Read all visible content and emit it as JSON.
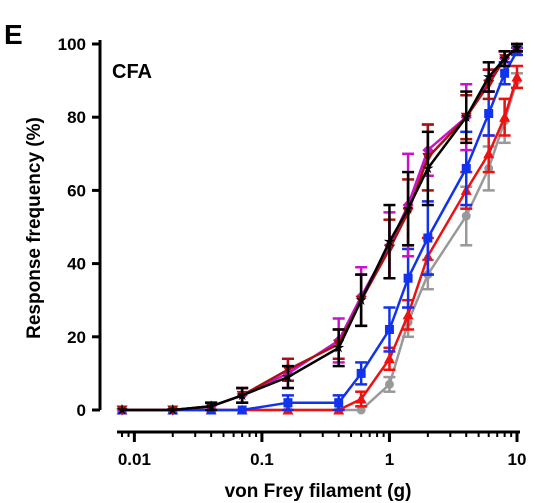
{
  "panel_label": "E",
  "chart_data": {
    "type": "line",
    "title": "",
    "annotation": "CFA",
    "xlabel": "von Frey filament (g)",
    "ylabel": "Response frequency (%)",
    "x_scale": "log",
    "xlim": [
      0.008,
      10
    ],
    "ylim": [
      0,
      100
    ],
    "x_ticks": [
      0.01,
      0.1,
      1,
      10
    ],
    "x_tick_labels": [
      "0.01",
      "0.1",
      "1",
      "10"
    ],
    "y_ticks": [
      0,
      20,
      40,
      60,
      80,
      100
    ],
    "y_tick_labels": [
      "0",
      "20",
      "40",
      "60",
      "80",
      "100"
    ],
    "grid": false,
    "legend": "none",
    "x": [
      0.008,
      0.02,
      0.04,
      0.07,
      0.16,
      0.4,
      0.6,
      1,
      1.4,
      2,
      4,
      6,
      8,
      10
    ],
    "series": [
      {
        "color": "#999999",
        "marker": "circle",
        "values": [
          0,
          0,
          0,
          0,
          0,
          0,
          0,
          7,
          24,
          37,
          53,
          66,
          79,
          90
        ],
        "errors": [
          0,
          0,
          0,
          0,
          0,
          0,
          0,
          2,
          4,
          4,
          8,
          6,
          6,
          2
        ]
      },
      {
        "color": "#ee1111",
        "marker": "triangle",
        "values": [
          0,
          0,
          0,
          0,
          0,
          0,
          3,
          14,
          26,
          42,
          60,
          70,
          80,
          91
        ],
        "errors": [
          0,
          0,
          0,
          0,
          0,
          0,
          2,
          3,
          4,
          5,
          5,
          5,
          5,
          3
        ]
      },
      {
        "color": "#1133ee",
        "marker": "square",
        "values": [
          0,
          0,
          0,
          0,
          2,
          2,
          10,
          22,
          36,
          47,
          66,
          81,
          92,
          98
        ],
        "errors": [
          0,
          0,
          0,
          0,
          2,
          2,
          3,
          6,
          8,
          10,
          10,
          6,
          3,
          1
        ]
      },
      {
        "color": "#cc11cc",
        "marker": "diamond",
        "values": [
          0,
          0,
          1,
          4,
          10,
          19,
          31,
          45,
          56,
          71,
          80,
          90,
          96,
          99
        ],
        "errors": [
          0,
          0,
          1,
          2,
          4,
          6,
          8,
          9,
          14,
          7,
          9,
          3,
          2,
          1
        ]
      },
      {
        "color": "#aa1111",
        "marker": "triangle-down",
        "values": [
          0,
          0,
          1,
          4,
          11,
          18,
          30,
          44,
          54,
          69,
          80,
          89,
          96,
          99
        ],
        "errors": [
          0,
          0,
          1,
          2,
          3,
          4,
          7,
          8,
          9,
          9,
          6,
          4,
          2,
          1
        ]
      },
      {
        "color": "#000000",
        "marker": "star",
        "values": [
          0,
          0,
          1,
          4,
          9,
          17,
          30,
          46,
          55,
          66,
          80,
          91,
          96,
          99
        ],
        "errors": [
          0,
          0,
          1,
          2,
          3,
          5,
          7,
          10,
          10,
          10,
          7,
          4,
          2,
          1
        ]
      }
    ]
  }
}
